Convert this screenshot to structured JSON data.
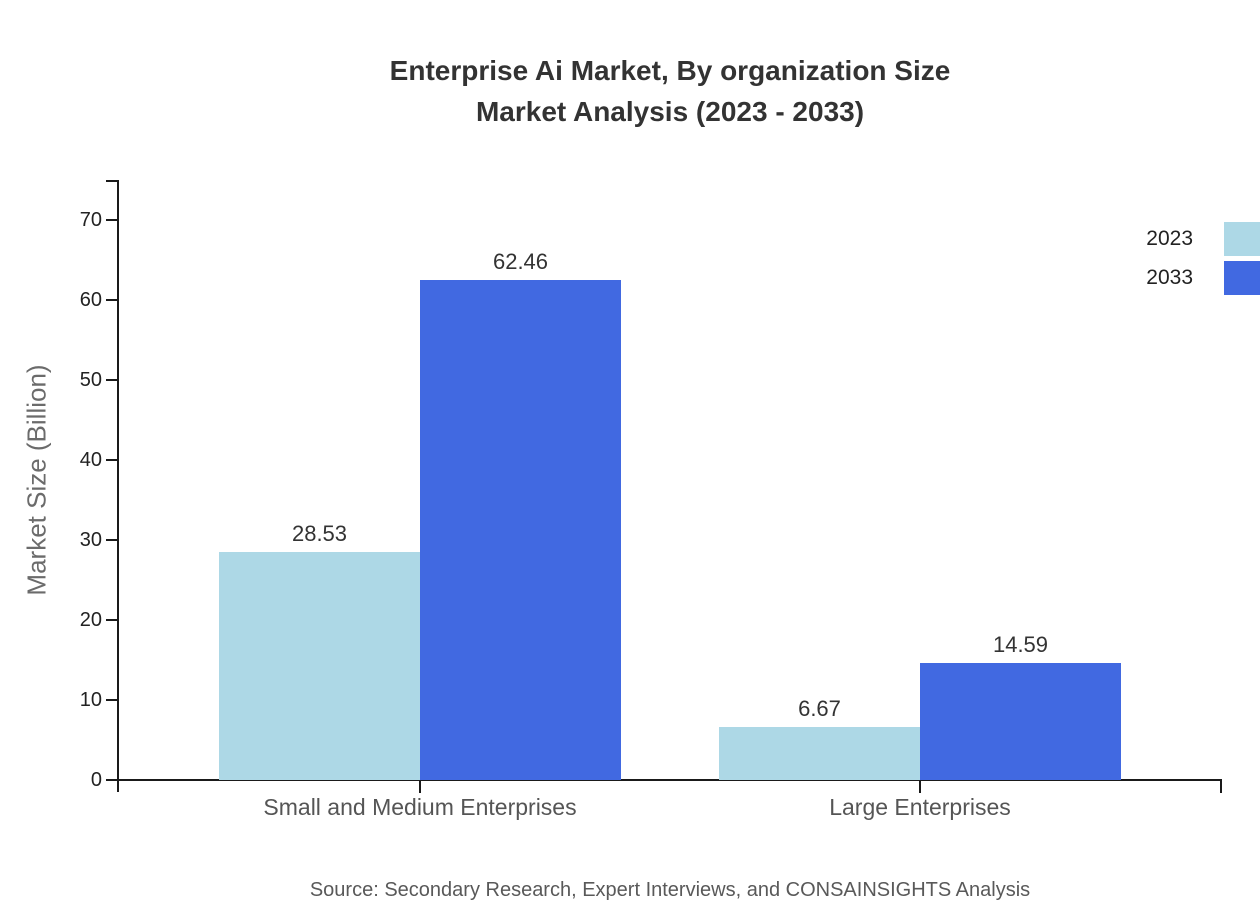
{
  "title": {
    "line1": "Enterprise Ai Market, By organization Size",
    "line2": "Market Analysis (2023 - 2033)"
  },
  "source_note": "Source: Secondary Research, Expert Interviews, and CONSAINSIGHTS Analysis",
  "chart_data": {
    "type": "bar",
    "title": "Enterprise Ai Market, By organization Size Market Analysis (2023 - 2033)",
    "categories": [
      "Small and Medium Enterprises",
      "Large Enterprises"
    ],
    "series": [
      {
        "name": "2023",
        "color": "#ADD8E6",
        "values": [
          28.53,
          6.67
        ]
      },
      {
        "name": "2033",
        "color": "#4169E1",
        "values": [
          62.46,
          14.59
        ]
      }
    ],
    "xlabel": "",
    "ylabel": "Market Size (Billion)",
    "ylim": [
      0,
      75
    ],
    "yticks": [
      0,
      10,
      20,
      30,
      40,
      50,
      60,
      70
    ],
    "grid": false,
    "legend_position": "top-right",
    "value_labels": true,
    "value_label_format": "2-decimals"
  },
  "colors": {
    "background": "#ffffff",
    "axis": "#1a1a1a",
    "title_text": "#333333",
    "tick_text": "#222222",
    "category_text": "#555555",
    "y_axis_label_text": "#6b6b6b",
    "value_label_text": "#333333",
    "source_text": "#595959"
  }
}
